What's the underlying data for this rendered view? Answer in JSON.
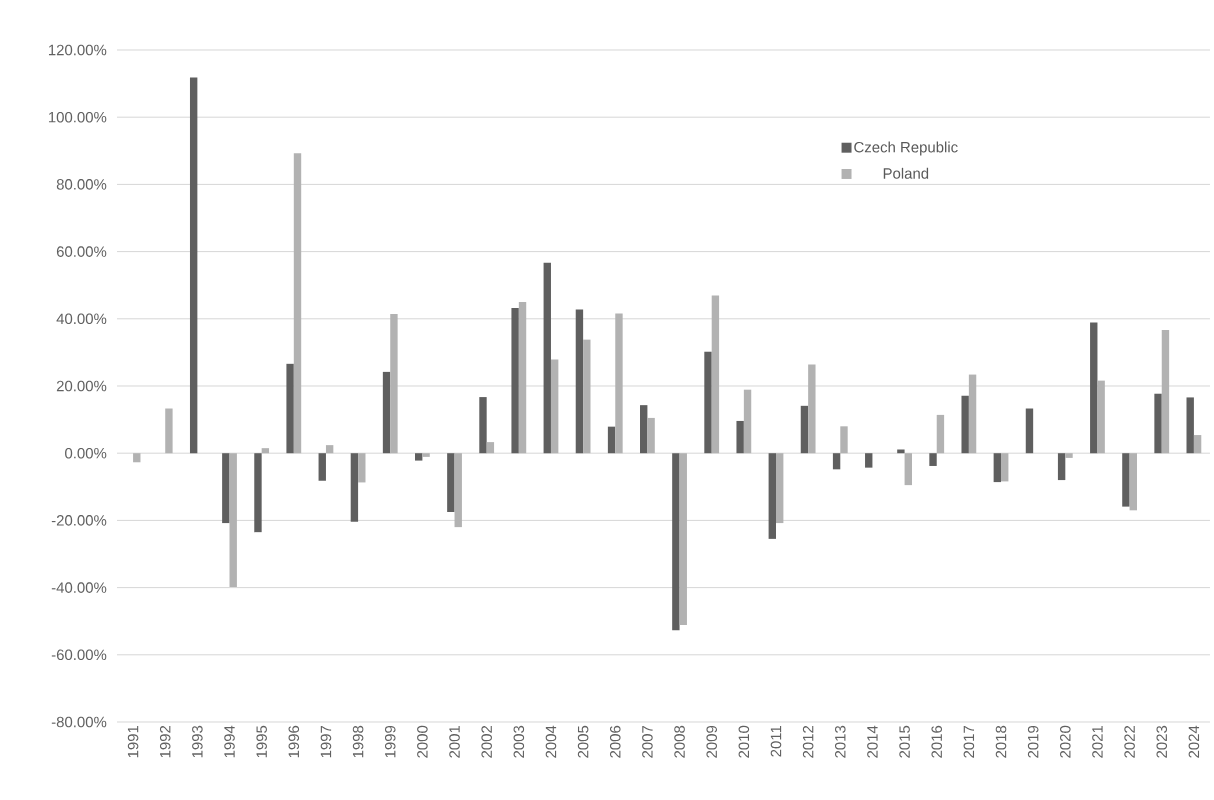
{
  "chart_data": {
    "type": "bar",
    "categories": [
      "1991",
      "1992",
      "1993",
      "1994",
      "1995",
      "1996",
      "1997",
      "1998",
      "1999",
      "2000",
      "2001",
      "2002",
      "2003",
      "2004",
      "2005",
      "2006",
      "2007",
      "2008",
      "2009",
      "2010",
      "2011",
      "2012",
      "2013",
      "2014",
      "2015",
      "2016",
      "2017",
      "2018",
      "2019",
      "2020",
      "2021",
      "2022",
      "2023",
      "2024"
    ],
    "series": [
      {
        "name": "Czech Republic",
        "color": "#5f5f5f",
        "values": [
          null,
          null,
          111.8,
          -20.8,
          -23.5,
          26.6,
          -8.2,
          -20.4,
          24.2,
          -2.2,
          -17.5,
          16.7,
          43.2,
          56.7,
          42.8,
          7.9,
          14.3,
          -52.7,
          30.2,
          9.6,
          -25.5,
          14.1,
          -4.8,
          -4.3,
          1.1,
          -3.8,
          17.1,
          -8.6,
          13.3,
          -8.0,
          38.9,
          -15.9,
          17.7,
          16.6
        ]
      },
      {
        "name": "Poland",
        "color": "#b2b2b2",
        "values": [
          -2.7,
          13.3,
          null,
          -39.8,
          1.5,
          89.3,
          2.4,
          -8.7,
          41.4,
          -1.1,
          -22.0,
          3.3,
          45.0,
          27.9,
          33.8,
          41.6,
          10.5,
          -51.1,
          46.9,
          18.9,
          -20.8,
          26.4,
          8.0,
          null,
          -9.5,
          11.4,
          23.4,
          -8.4,
          null,
          -1.4,
          21.6,
          -17.0,
          36.7,
          5.4
        ]
      }
    ],
    "ylim": [
      -80,
      120
    ],
    "yticks": [
      {
        "value": -80,
        "label": "-80.00%"
      },
      {
        "value": -60,
        "label": "-60.00%"
      },
      {
        "value": -40,
        "label": "-40.00%"
      },
      {
        "value": -20,
        "label": "-20.00%"
      },
      {
        "value": 0,
        "label": "0.00%"
      },
      {
        "value": 20,
        "label": "20.00%"
      },
      {
        "value": 40,
        "label": "40.00%"
      },
      {
        "value": 60,
        "label": "60.00%"
      },
      {
        "value": 80,
        "label": "80.00%"
      },
      {
        "value": 100,
        "label": "100.00%"
      },
      {
        "value": 120,
        "label": "120.00%"
      }
    ],
    "grid": "y",
    "legend": "top right"
  }
}
